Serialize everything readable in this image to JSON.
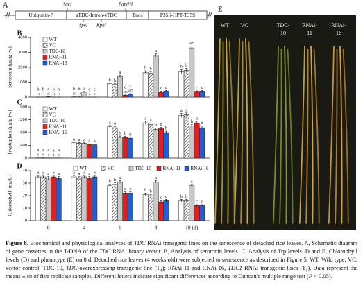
{
  "diagram": {
    "panel": "A",
    "boxes": [
      "Ubiquitin-P",
      "aTDC-Intron-sTDC",
      "Tnos",
      "P35S-HPT-T35S"
    ],
    "sites_top": [
      "SacI",
      "BamHI"
    ],
    "sites_bottom": [
      "SpeI",
      "KpnI"
    ]
  },
  "chart_data": [
    {
      "type": "bar",
      "panel": "B",
      "ylabel": "Serotonin (μg/g fw)",
      "ylim": [
        0,
        4000
      ],
      "yticks": [
        0,
        1000,
        2000,
        3000,
        4000
      ],
      "legend": "upper left",
      "series": [
        {
          "name": "WT",
          "color": "#ffffff",
          "values": [
            0.5,
            15,
            900,
            1650,
            1700
          ],
          "errors": [
            0.2,
            3,
            60,
            120,
            150
          ],
          "letters": [
            "b",
            "b",
            "b",
            "b",
            "b"
          ],
          "value_labels": [
            "<1",
            "15",
            null,
            null,
            null
          ]
        },
        {
          "name": "VC",
          "color": "#ffffff",
          "hatch": true,
          "values": [
            0.5,
            14,
            850,
            1600,
            1800
          ],
          "errors": [
            0.2,
            3,
            60,
            110,
            140
          ],
          "letters": [
            "b",
            "b",
            "b",
            "b",
            "b"
          ],
          "value_labels": [
            "<1",
            "14",
            null,
            null,
            null
          ]
        },
        {
          "name": "TDC-10",
          "color": "#c8c8c8",
          "values": [
            26,
            340,
            1400,
            2800,
            3300
          ],
          "errors": [
            5,
            40,
            70,
            100,
            120
          ],
          "letters": [
            "a",
            "a",
            "a",
            "a",
            "a*"
          ],
          "value_labels": [
            "26",
            null,
            null,
            null,
            null
          ]
        },
        {
          "name": "RNAi-11",
          "color": "#e02020",
          "values": [
            0.5,
            2,
            125,
            350,
            380
          ],
          "errors": [
            0.2,
            0.5,
            20,
            50,
            40
          ],
          "letters": [
            "b",
            "c",
            "c",
            "c",
            "c"
          ],
          "value_labels": [
            "<1",
            "2",
            "125",
            null,
            null
          ]
        },
        {
          "name": "RNAi-16",
          "color": "#1f5fd6",
          "values": [
            0.5,
            1,
            207,
            400,
            400
          ],
          "errors": [
            0.2,
            0.5,
            30,
            50,
            50
          ],
          "letters": [
            "b",
            "c",
            "c",
            "c",
            "c"
          ],
          "value_labels": [
            "<1",
            "1",
            "207",
            null,
            null
          ]
        }
      ]
    },
    {
      "type": "bar",
      "panel": "C",
      "ylabel": "Tryptophan (μg/g fw)",
      "ylim": [
        0,
        1600
      ],
      "yticks": [
        0,
        400,
        800,
        1200,
        1600
      ],
      "legend": "upper left",
      "series": [
        {
          "name": "WT",
          "color": "#ffffff",
          "values": [
            6,
            480,
            980,
            1100,
            1330
          ],
          "errors": [
            1,
            20,
            40,
            50,
            60
          ],
          "letters": [
            "a",
            "a",
            "a",
            "a",
            "a"
          ],
          "value_labels": [
            "6",
            null,
            null,
            null,
            null
          ]
        },
        {
          "name": "VC",
          "color": "#ffffff",
          "hatch": true,
          "values": [
            8,
            470,
            950,
            1050,
            1350
          ],
          "errors": [
            1,
            20,
            40,
            50,
            60
          ],
          "letters": [
            "a",
            "a",
            "a",
            "a",
            "a"
          ],
          "value_labels": [
            "8",
            null,
            null,
            null,
            null
          ]
        },
        {
          "name": "TDC-10",
          "color": "#c8c8c8",
          "values": [
            5,
            460,
            660,
            900,
            1000
          ],
          "errors": [
            1,
            20,
            30,
            40,
            50
          ],
          "letters": [
            "a",
            "a",
            "b",
            "b",
            "b"
          ],
          "value_labels": [
            "5",
            null,
            null,
            null,
            null
          ]
        },
        {
          "name": "RNAi-11",
          "color": "#e02020",
          "values": [
            4,
            430,
            650,
            920,
            1100
          ],
          "errors": [
            1,
            20,
            30,
            40,
            50
          ],
          "letters": [
            "a",
            "a",
            "b",
            "b",
            "b"
          ],
          "value_labels": [
            "4",
            null,
            null,
            null,
            null
          ]
        },
        {
          "name": "RNAi-16",
          "color": "#1f5fd6",
          "values": [
            5,
            420,
            620,
            800,
            950
          ],
          "errors": [
            1,
            20,
            30,
            40,
            50
          ],
          "letters": [
            "a",
            "a",
            "b",
            "b",
            "b"
          ],
          "value_labels": [
            "5",
            null,
            null,
            null,
            null
          ]
        }
      ]
    },
    {
      "type": "bar",
      "panel": "D",
      "ylabel": "Chlorophyll (mg/L)",
      "categories": [
        "0",
        "4",
        "6",
        "8",
        "10 (d)"
      ],
      "ylim": [
        0,
        40
      ],
      "yticks": [
        0,
        10,
        20,
        30,
        40
      ],
      "legend": "top",
      "series": [
        {
          "name": "WT",
          "color": "#ffffff",
          "values": [
            35,
            35,
            28,
            21,
            16
          ],
          "errors": [
            1.2,
            1.2,
            1.2,
            1,
            1
          ],
          "letters": [
            "a",
            "a",
            "b",
            "b",
            "b"
          ]
        },
        {
          "name": "VC",
          "color": "#ffffff",
          "hatch": true,
          "values": [
            35,
            34,
            29,
            20,
            16
          ],
          "errors": [
            1.2,
            1.2,
            1.2,
            1,
            1
          ],
          "letters": [
            "a",
            "a",
            "b",
            "b",
            "b"
          ]
        },
        {
          "name": "TDC-10",
          "color": "#c8c8c8",
          "values": [
            34,
            35,
            31,
            31,
            28
          ],
          "errors": [
            1.2,
            1.2,
            1,
            1,
            1
          ],
          "letters": [
            "a",
            "a",
            "a",
            "a",
            "a"
          ]
        },
        {
          "name": "RNAi-11",
          "color": "#e02020",
          "values": [
            35,
            34,
            22,
            15,
            12
          ],
          "errors": [
            1.2,
            1.2,
            1,
            1,
            0.8
          ],
          "letters": [
            "a",
            "a",
            "c",
            "c",
            "c"
          ]
        },
        {
          "name": "RNAi-16",
          "color": "#1f5fd6",
          "values": [
            34,
            35,
            22,
            16,
            12
          ],
          "errors": [
            1.2,
            1.2,
            1,
            1,
            0.8
          ],
          "letters": [
            "a",
            "a",
            "c",
            "c",
            "c"
          ]
        }
      ]
    }
  ],
  "photo": {
    "panel": "E",
    "groups": [
      [
        "WT"
      ],
      [
        "VC"
      ],
      [
        "TDC-",
        "10"
      ],
      [
        "RNAi-",
        "11"
      ],
      [
        "RNAi-",
        "16"
      ]
    ]
  },
  "caption": {
    "runs": [
      {
        "text": "Figure 8.",
        "style": "b"
      },
      {
        "text": "  Biochemical and physiological analyses of "
      },
      {
        "text": "TDC",
        "style": "i"
      },
      {
        "text": " RNAi transgenic lines on the senescence of detached rice leaves. A, Schematic diagram of gene cassettes in the T-DNA of the "
      },
      {
        "text": "TDC",
        "style": "i"
      },
      {
        "text": " RNAi binary vector. B, Analysis of serotonin levels. C, Analysis of Trp levels. D and E, Chlorophyll levels (D) and phenotype (E) on 8 d. Detached rice leaves (4 weeks old) were subjected to senescence as described in Figure 5. WT, Wild type; VC, vector control; TDC-10, "
      },
      {
        "text": "TDC",
        "style": "i"
      },
      {
        "text": "-overexpressing transgenic line (T"
      },
      {
        "text": "4",
        "style": "sub"
      },
      {
        "text": "); RNAi-11 and RNAi-16, "
      },
      {
        "text": "TDC1",
        "style": "i"
      },
      {
        "text": " RNAi transgenic lines (T"
      },
      {
        "text": "1",
        "style": "sub"
      },
      {
        "text": "). Data represent the means ± "
      },
      {
        "text": "sd",
        "style": "sc"
      },
      {
        "text": " of five replicate samples. Different letters indicate significant differences according to Duncan's multiple range test ("
      },
      {
        "text": "P",
        "style": "i"
      },
      {
        "text": " < 0.05)."
      }
    ]
  }
}
